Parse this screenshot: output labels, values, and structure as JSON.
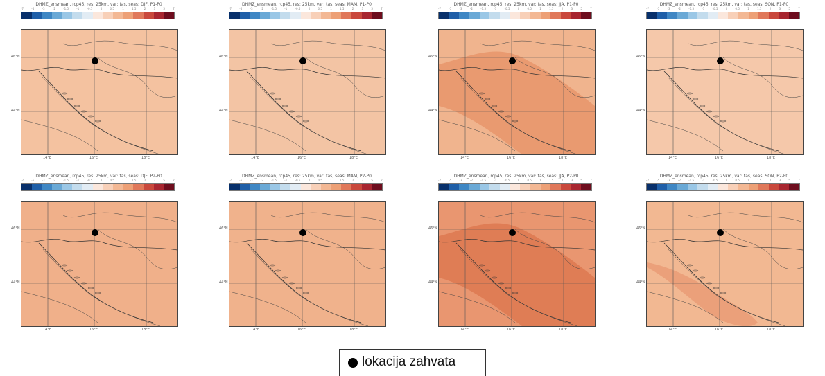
{
  "panels": [
    {
      "title": "DHMZ_ensmean, rcp45, res: 25km, var: tas, seas: DJF, P1-P0",
      "fill": "#f4c2a0",
      "dark": null
    },
    {
      "title": "DHMZ_ensmean, rcp45, res: 25km, var: tas, seas: MAM, P1-P0",
      "fill": "#f3c4a4",
      "dark": null
    },
    {
      "title": "DHMZ_ensmean, rcp45, res: 25km, var: tas, seas: JJA, P1-P0",
      "fill": "#f0b48e",
      "dark": "#e99a70"
    },
    {
      "title": "DHMZ_ensmean, rcp45, res: 25km, var: tas, seas: SON, P1-P0",
      "fill": "#f5c8aa",
      "dark": null
    },
    {
      "title": "DHMZ_ensmean, rcp45, res: 25km, var: tas, seas: DJF, P2-P0",
      "fill": "#f0b08a",
      "dark": null
    },
    {
      "title": "DHMZ_ensmean, rcp45, res: 25km, var: tas, seas: MAM, P2-P0",
      "fill": "#f0b28c",
      "dark": null
    },
    {
      "title": "DHMZ_ensmean, rcp45, res: 25km, var: tas, seas: JJA, P2-P0",
      "fill": "#e99670",
      "dark": "#df7d55"
    },
    {
      "title": "DHMZ_ensmean, rcp45, res: 25km, var: tas, seas: SON, P2-P0",
      "fill": "#f2b892",
      "dark": "#eba07a"
    }
  ],
  "colorbar": {
    "ticks": [
      "-7",
      "-5",
      "-3",
      "-2",
      "-1.5",
      "-1",
      "-0.5",
      "0",
      "0.5",
      "1",
      "1.5",
      "2",
      "3",
      "5",
      "7"
    ],
    "colors": [
      "#08306b",
      "#1f5fa8",
      "#3f87c4",
      "#6aa9d6",
      "#9ac7e6",
      "#c3dced",
      "#e2ecf4",
      "#fbe7dc",
      "#f8d0b8",
      "#f3b894",
      "#eda076",
      "#e0785a",
      "#c9483c",
      "#a82630",
      "#6e0d1e"
    ]
  },
  "axes": {
    "x_ticks": [
      "14°E",
      "16°E",
      "18°E"
    ],
    "y_ticks": [
      "46°N",
      "44°N"
    ]
  },
  "legend": {
    "marker_icon": "black-dot-icon",
    "label": "lokacija zahvata"
  }
}
